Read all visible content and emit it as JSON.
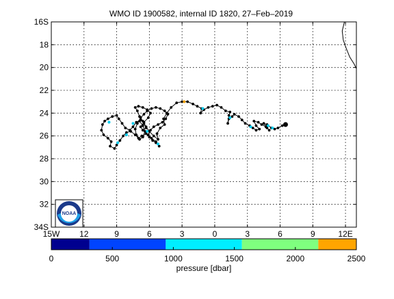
{
  "chart_data": [
    {
      "type": "scatter",
      "title": "WMO ID 1900582, internal ID 1820, 27–Feb–2019",
      "x_ticks": [
        "15W",
        "12",
        "9",
        "6",
        "3",
        "0",
        "3",
        "6",
        "9",
        "12E"
      ],
      "x_tick_values": [
        -15,
        -12,
        -9,
        -6,
        -3,
        0,
        3,
        6,
        9,
        12
      ],
      "y_ticks": [
        "16S",
        "18",
        "20",
        "22",
        "24",
        "26",
        "28",
        "30",
        "32",
        "34S"
      ],
      "y_tick_values": [
        -16,
        -18,
        -20,
        -22,
        -24,
        -26,
        -28,
        -30,
        -32,
        -34
      ],
      "xlim": [
        -15,
        13
      ],
      "ylim": [
        -34,
        -16
      ],
      "grid": true,
      "logo": "NOAA",
      "coastline": [
        [
          11.9,
          -16.0
        ],
        [
          11.7,
          -16.8
        ],
        [
          11.8,
          -17.6
        ],
        [
          12.1,
          -18.4
        ],
        [
          12.4,
          -19.1
        ],
        [
          12.8,
          -19.7
        ],
        [
          13.0,
          -20.1
        ]
      ],
      "track": [
        [
          6.5,
          -25.0
        ],
        [
          6.2,
          -25.1
        ],
        [
          5.8,
          -25.3
        ],
        [
          5.5,
          -25.4
        ],
        [
          5.2,
          -25.3
        ],
        [
          4.8,
          -25.0
        ],
        [
          4.5,
          -24.9
        ],
        [
          4.8,
          -25.3
        ],
        [
          5.0,
          -25.5
        ],
        [
          4.7,
          -25.2
        ],
        [
          4.3,
          -25.0
        ],
        [
          4.0,
          -24.8
        ],
        [
          3.6,
          -24.7
        ],
        [
          3.8,
          -25.1
        ],
        [
          4.1,
          -25.4
        ],
        [
          3.8,
          -25.5
        ],
        [
          3.5,
          -25.3
        ],
        [
          3.2,
          -25.1
        ],
        [
          2.8,
          -24.9
        ],
        [
          2.5,
          -24.6
        ],
        [
          2.2,
          -24.3
        ],
        [
          1.8,
          -24.1
        ],
        [
          1.6,
          -24.3
        ],
        [
          1.3,
          -24.5
        ],
        [
          1.2,
          -24.9
        ],
        [
          1.3,
          -24.2
        ],
        [
          1.4,
          -23.9
        ],
        [
          1.0,
          -23.8
        ],
        [
          0.6,
          -23.5
        ],
        [
          0.2,
          -23.3
        ],
        [
          -0.2,
          -23.4
        ],
        [
          -0.6,
          -23.5
        ],
        [
          -1.0,
          -23.7
        ],
        [
          -1.3,
          -24.0
        ],
        [
          -1.2,
          -23.6
        ],
        [
          -1.6,
          -23.4
        ],
        [
          -2.0,
          -23.2
        ],
        [
          -2.5,
          -23.0
        ],
        [
          -3.0,
          -23.0
        ],
        [
          -3.5,
          -23.1
        ],
        [
          -4.0,
          -23.5
        ],
        [
          -4.4,
          -24.0
        ],
        [
          -4.7,
          -24.5
        ],
        [
          -4.6,
          -25.0
        ],
        [
          -5.0,
          -25.3
        ],
        [
          -5.3,
          -25.8
        ],
        [
          -5.2,
          -26.3
        ],
        [
          -5.6,
          -26.0
        ],
        [
          -6.0,
          -25.6
        ],
        [
          -6.3,
          -25.2
        ],
        [
          -6.6,
          -24.7
        ],
        [
          -6.9,
          -24.3
        ],
        [
          -7.1,
          -23.8
        ],
        [
          -7.3,
          -23.5
        ],
        [
          -7.0,
          -23.4
        ],
        [
          -6.6,
          -23.5
        ],
        [
          -6.2,
          -23.7
        ],
        [
          -5.9,
          -24.0
        ],
        [
          -6.1,
          -24.4
        ],
        [
          -6.5,
          -24.8
        ],
        [
          -6.8,
          -25.2
        ],
        [
          -6.6,
          -25.5
        ],
        [
          -6.3,
          -25.3
        ],
        [
          -6.5,
          -24.9
        ],
        [
          -6.8,
          -24.6
        ],
        [
          -7.2,
          -24.8
        ],
        [
          -7.5,
          -25.2
        ],
        [
          -7.8,
          -25.5
        ],
        [
          -8.2,
          -25.3
        ],
        [
          -8.5,
          -24.9
        ],
        [
          -8.8,
          -24.5
        ],
        [
          -9.0,
          -24.2
        ],
        [
          -9.4,
          -24.3
        ],
        [
          -9.8,
          -24.5
        ],
        [
          -10.1,
          -24.7
        ],
        [
          -10.3,
          -25.0
        ],
        [
          -10.4,
          -25.5
        ],
        [
          -10.2,
          -25.9
        ],
        [
          -9.8,
          -26.2
        ],
        [
          -9.5,
          -26.5
        ],
        [
          -9.6,
          -26.9
        ],
        [
          -9.2,
          -27.1
        ],
        [
          -9.0,
          -26.8
        ],
        [
          -8.7,
          -26.4
        ],
        [
          -8.4,
          -26.0
        ],
        [
          -8.1,
          -25.7
        ],
        [
          -7.7,
          -25.6
        ],
        [
          -7.3,
          -25.9
        ],
        [
          -7.0,
          -26.2
        ],
        [
          -6.7,
          -26.0
        ],
        [
          -6.3,
          -25.8
        ],
        [
          -6.0,
          -26.1
        ],
        [
          -5.7,
          -26.4
        ],
        [
          -5.4,
          -26.6
        ],
        [
          -5.1,
          -26.9
        ],
        [
          -5.4,
          -26.5
        ],
        [
          -5.8,
          -26.2
        ],
        [
          -6.1,
          -25.9
        ],
        [
          -5.9,
          -25.5
        ],
        [
          -5.6,
          -25.2
        ],
        [
          -5.2,
          -25.0
        ],
        [
          -4.8,
          -24.8
        ],
        [
          -4.5,
          -24.5
        ],
        [
          -4.3,
          -24.1
        ],
        [
          -4.6,
          -23.8
        ],
        [
          -5.0,
          -23.6
        ],
        [
          -5.4,
          -23.5
        ],
        [
          -5.8,
          -23.6
        ],
        [
          -6.2,
          -23.8
        ],
        [
          -6.5,
          -24.1
        ],
        [
          -6.8,
          -24.4
        ],
        [
          -7.1,
          -24.9
        ],
        [
          -7.3,
          -25.4
        ],
        [
          -7.2,
          -25.9
        ],
        [
          -6.9,
          -26.3
        ],
        [
          -6.6,
          -26.1
        ],
        [
          -6.4,
          -25.6
        ],
        [
          -6.6,
          -25.1
        ],
        [
          -6.9,
          -24.7
        ]
      ],
      "cyan_points": [
        [
          5.3,
          -25.3
        ],
        [
          4.9,
          -25.1
        ],
        [
          3.3,
          -25.2
        ],
        [
          1.4,
          -24.4
        ],
        [
          -1.1,
          -23.6
        ],
        [
          -8.9,
          -26.6
        ],
        [
          -9.7,
          -24.8
        ],
        [
          -8.1,
          -25.9
        ],
        [
          -5.2,
          -26.7
        ]
      ],
      "highlight_points": [
        {
          "x": -2.8,
          "y": -23.0,
          "color": "#f0a000"
        },
        {
          "x": -6.2,
          "y": -25.6,
          "color": "#00ccee"
        },
        {
          "x": -7.5,
          "y": -24.9,
          "color": "#00ccee"
        }
      ],
      "colors": {
        "track": "#000000",
        "cyan": "#00ccee",
        "coast": "#000000"
      }
    },
    {
      "type": "heatmap",
      "title": "",
      "xlabel": "pressure [dbar]",
      "x_ticks": [
        "0",
        "500",
        "1000",
        "1500",
        "2000",
        "2500"
      ],
      "x_tick_values": [
        0,
        500,
        1000,
        1500,
        2000,
        2500
      ],
      "xlim": [
        0,
        2500
      ],
      "bins": [
        {
          "from": 0,
          "to": 313,
          "color": "#00008f"
        },
        {
          "from": 313,
          "to": 938,
          "color": "#0044ff"
        },
        {
          "from": 938,
          "to": 1562,
          "color": "#00eeff"
        },
        {
          "from": 1562,
          "to": 2188,
          "color": "#7fff7f"
        },
        {
          "from": 2188,
          "to": 2500,
          "color": "#ffa500"
        }
      ]
    }
  ]
}
